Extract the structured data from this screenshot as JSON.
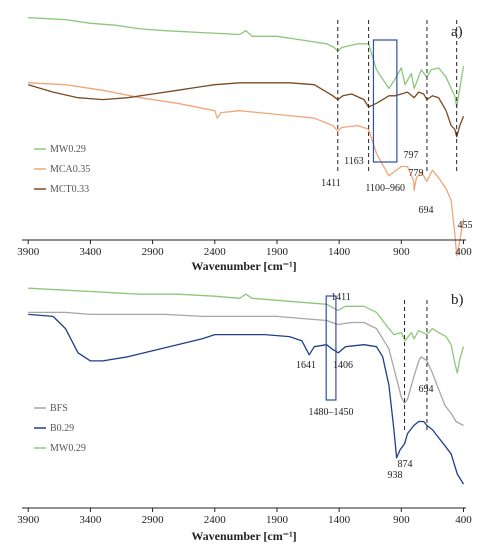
{
  "chart_data": [
    {
      "type": "line",
      "panel_label": "a)",
      "xlabel": "Wavenumber [cm⁻¹]",
      "x_reversed": true,
      "xlim": [
        3950,
        380
      ],
      "x_ticks": [
        3900,
        3400,
        2900,
        2400,
        1900,
        1400,
        900,
        400
      ],
      "y_axis_shown": false,
      "legend_position": "left",
      "series": [
        {
          "name": "MW0.29",
          "color": "#8cc87a",
          "points": [
            [
              3900,
              0.98
            ],
            [
              3600,
              0.97
            ],
            [
              3400,
              0.95
            ],
            [
              3200,
              0.94
            ],
            [
              3000,
              0.92
            ],
            [
              2800,
              0.91
            ],
            [
              2500,
              0.9
            ],
            [
              2200,
              0.89
            ],
            [
              2150,
              0.91
            ],
            [
              2100,
              0.88
            ],
            [
              1900,
              0.88
            ],
            [
              1700,
              0.86
            ],
            [
              1500,
              0.84
            ],
            [
              1440,
              0.82
            ],
            [
              1411,
              0.8
            ],
            [
              1380,
              0.82
            ],
            [
              1250,
              0.84
            ],
            [
              1163,
              0.84
            ],
            [
              1100,
              0.7
            ],
            [
              1000,
              0.6
            ],
            [
              960,
              0.64
            ],
            [
              900,
              0.71
            ],
            [
              870,
              0.62
            ],
            [
              820,
              0.68
            ],
            [
              797,
              0.6
            ],
            [
              779,
              0.63
            ],
            [
              740,
              0.7
            ],
            [
              694,
              0.66
            ],
            [
              660,
              0.7
            ],
            [
              600,
              0.71
            ],
            [
              540,
              0.66
            ],
            [
              500,
              0.6
            ],
            [
              470,
              0.56
            ],
            [
              455,
              0.5
            ],
            [
              430,
              0.6
            ],
            [
              400,
              0.72
            ]
          ]
        },
        {
          "name": "MCA0.35",
          "color": "#f0a67a",
          "points": [
            [
              3900,
              0.63
            ],
            [
              3600,
              0.62
            ],
            [
              3300,
              0.59
            ],
            [
              3000,
              0.55
            ],
            [
              2700,
              0.52
            ],
            [
              2400,
              0.48
            ],
            [
              2380,
              0.44
            ],
            [
              2350,
              0.47
            ],
            [
              2200,
              0.48
            ],
            [
              1900,
              0.46
            ],
            [
              1600,
              0.44
            ],
            [
              1450,
              0.4
            ],
            [
              1411,
              0.37
            ],
            [
              1380,
              0.39
            ],
            [
              1250,
              0.4
            ],
            [
              1163,
              0.38
            ],
            [
              1100,
              0.25
            ],
            [
              1000,
              0.13
            ],
            [
              960,
              0.15
            ],
            [
              900,
              0.18
            ],
            [
              850,
              0.18
            ],
            [
              800,
              0.1
            ],
            [
              797,
              0.05
            ],
            [
              779,
              0.12
            ],
            [
              740,
              0.15
            ],
            [
              694,
              0.1
            ],
            [
              650,
              0.16
            ],
            [
              600,
              0.12
            ],
            [
              540,
              0.06
            ],
            [
              500,
              0.0
            ],
            [
              470,
              -0.18
            ],
            [
              455,
              -0.3
            ],
            [
              430,
              -0.22
            ],
            [
              400,
              -0.1
            ]
          ]
        },
        {
          "name": "MCT0.33",
          "color": "#7a4a22",
          "points": [
            [
              3900,
              0.62
            ],
            [
              3700,
              0.58
            ],
            [
              3500,
              0.55
            ],
            [
              3300,
              0.54
            ],
            [
              3100,
              0.55
            ],
            [
              2900,
              0.57
            ],
            [
              2700,
              0.59
            ],
            [
              2500,
              0.61
            ],
            [
              2400,
              0.62
            ],
            [
              2200,
              0.63
            ],
            [
              2000,
              0.63
            ],
            [
              1800,
              0.63
            ],
            [
              1600,
              0.62
            ],
            [
              1450,
              0.56
            ],
            [
              1411,
              0.54
            ],
            [
              1370,
              0.56
            ],
            [
              1300,
              0.57
            ],
            [
              1200,
              0.54
            ],
            [
              1163,
              0.5
            ],
            [
              1100,
              0.52
            ],
            [
              1000,
              0.56
            ],
            [
              950,
              0.56
            ],
            [
              900,
              0.57
            ],
            [
              850,
              0.58
            ],
            [
              797,
              0.55
            ],
            [
              760,
              0.58
            ],
            [
              720,
              0.57
            ],
            [
              694,
              0.54
            ],
            [
              650,
              0.56
            ],
            [
              600,
              0.55
            ],
            [
              540,
              0.48
            ],
            [
              500,
              0.4
            ],
            [
              470,
              0.38
            ],
            [
              455,
              0.34
            ],
            [
              430,
              0.4
            ],
            [
              400,
              0.45
            ]
          ]
        }
      ],
      "annotations": [
        {
          "x": 1411,
          "label": "1411",
          "guide": "dashed"
        },
        {
          "x": 1163,
          "label": "1163",
          "guide": "dashed"
        },
        {
          "x": 797,
          "label": "797"
        },
        {
          "x": 779,
          "label": "779"
        },
        {
          "x": 694,
          "label": "694",
          "guide": "dashed"
        },
        {
          "x": 455,
          "label": "455",
          "guide": "dashed"
        }
      ],
      "highlight_region": {
        "x": [
          1100,
          960
        ],
        "label": "1100–960"
      }
    },
    {
      "type": "line",
      "panel_label": "b)",
      "xlabel": "Wavenumber [cm⁻¹]",
      "x_reversed": true,
      "xlim": [
        3950,
        380
      ],
      "x_ticks": [
        3900,
        3400,
        2900,
        2400,
        1900,
        1400,
        900,
        400
      ],
      "y_axis_shown": false,
      "legend_position": "left",
      "series": [
        {
          "name": "BFS",
          "color": "#a6a6a6",
          "points": [
            [
              3900,
              0.8
            ],
            [
              3600,
              0.8
            ],
            [
              3400,
              0.79
            ],
            [
              3100,
              0.79
            ],
            [
              2800,
              0.79
            ],
            [
              2500,
              0.78
            ],
            [
              2200,
              0.78
            ],
            [
              1900,
              0.78
            ],
            [
              1700,
              0.77
            ],
            [
              1500,
              0.76
            ],
            [
              1411,
              0.74
            ],
            [
              1300,
              0.75
            ],
            [
              1200,
              0.75
            ],
            [
              1100,
              0.72
            ],
            [
              1000,
              0.62
            ],
            [
              950,
              0.5
            ],
            [
              900,
              0.38
            ],
            [
              874,
              0.35
            ],
            [
              850,
              0.37
            ],
            [
              800,
              0.48
            ],
            [
              760,
              0.56
            ],
            [
              740,
              0.58
            ],
            [
              694,
              0.56
            ],
            [
              650,
              0.5
            ],
            [
              600,
              0.42
            ],
            [
              550,
              0.34
            ],
            [
              500,
              0.3
            ],
            [
              460,
              0.26
            ],
            [
              430,
              0.25
            ],
            [
              400,
              0.24
            ]
          ]
        },
        {
          "name": "B0.29",
          "color": "#1f3f8a",
          "points": [
            [
              3900,
              0.79
            ],
            [
              3700,
              0.78
            ],
            [
              3600,
              0.72
            ],
            [
              3500,
              0.6
            ],
            [
              3400,
              0.56
            ],
            [
              3300,
              0.56
            ],
            [
              3100,
              0.58
            ],
            [
              2900,
              0.61
            ],
            [
              2700,
              0.64
            ],
            [
              2500,
              0.67
            ],
            [
              2400,
              0.69
            ],
            [
              2200,
              0.69
            ],
            [
              2000,
              0.69
            ],
            [
              1800,
              0.68
            ],
            [
              1700,
              0.66
            ],
            [
              1641,
              0.59
            ],
            [
              1600,
              0.63
            ],
            [
              1500,
              0.64
            ],
            [
              1460,
              0.62
            ],
            [
              1406,
              0.6
            ],
            [
              1350,
              0.63
            ],
            [
              1200,
              0.64
            ],
            [
              1100,
              0.63
            ],
            [
              1050,
              0.58
            ],
            [
              1000,
              0.44
            ],
            [
              960,
              0.22
            ],
            [
              938,
              0.08
            ],
            [
              910,
              0.12
            ],
            [
              874,
              0.15
            ],
            [
              850,
              0.2
            ],
            [
              800,
              0.24
            ],
            [
              760,
              0.26
            ],
            [
              720,
              0.26
            ],
            [
              694,
              0.24
            ],
            [
              650,
              0.22
            ],
            [
              600,
              0.18
            ],
            [
              550,
              0.14
            ],
            [
              500,
              0.1
            ],
            [
              450,
              0.0
            ],
            [
              400,
              -0.05
            ]
          ]
        },
        {
          "name": "MW0.29",
          "color": "#8cc87a",
          "points": [
            [
              3900,
              0.92
            ],
            [
              3600,
              0.91
            ],
            [
              3300,
              0.9
            ],
            [
              3000,
              0.89
            ],
            [
              2700,
              0.89
            ],
            [
              2400,
              0.88
            ],
            [
              2200,
              0.87
            ],
            [
              2150,
              0.89
            ],
            [
              2100,
              0.87
            ],
            [
              1900,
              0.86
            ],
            [
              1700,
              0.85
            ],
            [
              1500,
              0.84
            ],
            [
              1411,
              0.81
            ],
            [
              1350,
              0.83
            ],
            [
              1200,
              0.83
            ],
            [
              1100,
              0.8
            ],
            [
              1000,
              0.72
            ],
            [
              960,
              0.69
            ],
            [
              900,
              0.7
            ],
            [
              870,
              0.66
            ],
            [
              820,
              0.7
            ],
            [
              797,
              0.67
            ],
            [
              760,
              0.71
            ],
            [
              694,
              0.69
            ],
            [
              650,
              0.72
            ],
            [
              600,
              0.7
            ],
            [
              540,
              0.68
            ],
            [
              500,
              0.64
            ],
            [
              470,
              0.55
            ],
            [
              450,
              0.5
            ],
            [
              430,
              0.57
            ],
            [
              400,
              0.63
            ]
          ]
        }
      ],
      "annotations": [
        {
          "x": 1641,
          "label": "1641"
        },
        {
          "x": 1411,
          "label": "1411"
        },
        {
          "x": 1406,
          "label": "1406"
        },
        {
          "x": 938,
          "label": "938"
        },
        {
          "x": 874,
          "label": "874",
          "guide": "dashed"
        },
        {
          "x": 694,
          "label": "694",
          "guide": "dashed"
        }
      ],
      "highlight_region": {
        "x": [
          1480,
          1450
        ],
        "label": "1480–1450"
      }
    }
  ]
}
